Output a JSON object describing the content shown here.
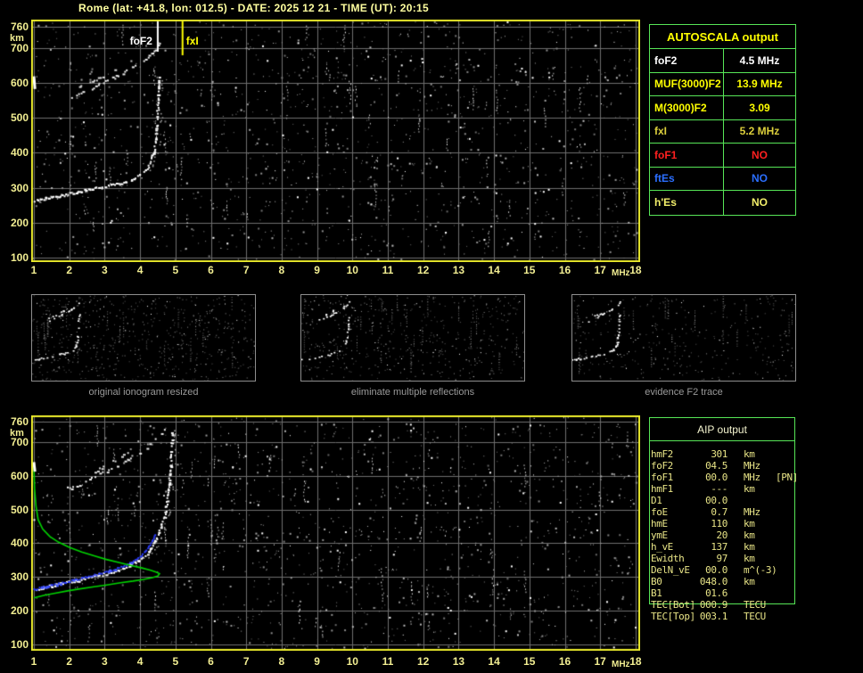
{
  "title": "Rome (lat: +41.8, lon: 012.5) - DATE: 2025 12 21 - TIME (UT): 20:15",
  "colors": {
    "background": "#000000",
    "title_text": "#ffffa0",
    "axis_text": "#f2ee92",
    "plot_border": "#e8e82a",
    "grid": "#6f6f6f",
    "table_border": "#57e657",
    "autoscala_header": "#ffff00",
    "aip_text": "#e9e587",
    "trace_white": "#ffffff",
    "fitted_trace_blue": "#2b3cff",
    "profile_green": "#00d200",
    "panel_caption": "#9a9a9a"
  },
  "chart_data": [
    {
      "type": "scatter",
      "name": "scaled ionogram with AUTOSCALA markers",
      "x_label": "MHz",
      "y_label": "km",
      "xlim": [
        1,
        18
      ],
      "ylim": [
        100,
        760
      ],
      "x_ticks": [
        1,
        2,
        3,
        4,
        5,
        6,
        7,
        8,
        9,
        10,
        11,
        12,
        13,
        14,
        15,
        16,
        17,
        18
      ],
      "y_ticks": [
        760,
        700,
        600,
        500,
        400,
        300,
        200,
        100
      ],
      "grid": true,
      "markers": [
        {
          "label": "foF2",
          "freq_mhz": 4.5,
          "color": "#ffffff",
          "side": "left"
        },
        {
          "label": "fxI",
          "freq_mhz": 5.2,
          "color": "#ffff00",
          "side": "right"
        }
      ],
      "series": [
        {
          "name": "F2 trace (first hop)",
          "color": "#ffffff",
          "style": "speckle",
          "points": [
            [
              1.0,
              262
            ],
            [
              1.3,
              267
            ],
            [
              1.6,
              273
            ],
            [
              1.9,
              279
            ],
            [
              2.2,
              286
            ],
            [
              2.5,
              292
            ],
            [
              2.8,
              298
            ],
            [
              3.1,
              304
            ],
            [
              3.4,
              311
            ],
            [
              3.7,
              320
            ],
            [
              3.95,
              331
            ],
            [
              4.15,
              347
            ],
            [
              4.3,
              370
            ],
            [
              4.4,
              402
            ],
            [
              4.46,
              445
            ],
            [
              4.5,
              505
            ],
            [
              4.53,
              570
            ],
            [
              4.55,
              625
            ]
          ]
        },
        {
          "name": "F2 trace (second hop)",
          "color": "#ededed",
          "style": "speckle-sparse",
          "points": [
            [
              2.1,
              558
            ],
            [
              2.4,
              572
            ],
            [
              2.7,
              585
            ],
            [
              3.0,
              600
            ],
            [
              3.3,
              615
            ],
            [
              3.6,
              631
            ],
            [
              3.9,
              648
            ],
            [
              4.15,
              665
            ],
            [
              4.35,
              682
            ],
            [
              4.5,
              700
            ],
            [
              4.58,
              715
            ]
          ]
        },
        {
          "name": "second hop split echo",
          "color": "#d8d8d8",
          "style": "speckle-sparse",
          "points": [
            [
              2.3,
              585
            ],
            [
              2.6,
              600
            ],
            [
              2.9,
              615
            ],
            [
              3.2,
              630
            ],
            [
              3.5,
              648
            ]
          ]
        },
        {
          "name": "left edge echo",
          "color": "#ffffff",
          "style": "thick",
          "points": [
            [
              1.0,
              618
            ],
            [
              1.03,
              582
            ]
          ]
        }
      ]
    },
    {
      "type": "scatter",
      "name": "ionogram with AIP fitted trace and electron density profile",
      "x_label": "MHz",
      "y_label": "km",
      "xlim": [
        1,
        18
      ],
      "ylim": [
        100,
        760
      ],
      "x_ticks": [
        1,
        2,
        3,
        4,
        5,
        6,
        7,
        8,
        9,
        10,
        11,
        12,
        13,
        14,
        15,
        16,
        17,
        18
      ],
      "y_ticks": [
        760,
        700,
        600,
        500,
        400,
        300,
        200,
        100
      ],
      "grid": true,
      "markers": [],
      "series": [
        {
          "name": "F2 trace (first hop)",
          "color": "#ffffff",
          "style": "speckle",
          "points": [
            [
              1.05,
              263
            ],
            [
              1.35,
              269
            ],
            [
              1.65,
              276
            ],
            [
              1.95,
              283
            ],
            [
              2.25,
              289
            ],
            [
              2.55,
              295
            ],
            [
              2.85,
              303
            ],
            [
              3.15,
              312
            ],
            [
              3.45,
              322
            ],
            [
              3.7,
              333
            ],
            [
              3.95,
              347
            ],
            [
              4.15,
              363
            ],
            [
              4.3,
              382
            ],
            [
              4.45,
              408
            ],
            [
              4.6,
              445
            ],
            [
              4.72,
              490
            ],
            [
              4.8,
              545
            ],
            [
              4.86,
              610
            ],
            [
              4.9,
              675
            ],
            [
              4.92,
              730
            ]
          ]
        },
        {
          "name": "F2 trace (second hop)",
          "color": "#ededed",
          "style": "speckle-sparse",
          "points": [
            [
              2.0,
              560
            ],
            [
              2.3,
              573
            ],
            [
              2.6,
              588
            ],
            [
              2.9,
              604
            ],
            [
              3.2,
              620
            ],
            [
              3.5,
              637
            ],
            [
              3.8,
              655
            ],
            [
              4.1,
              673
            ],
            [
              4.35,
              695
            ],
            [
              4.55,
              718
            ],
            [
              4.7,
              738
            ],
            [
              4.8,
              755
            ]
          ]
        },
        {
          "name": "second hop split echo",
          "color": "#d8d8d8",
          "style": "speckle-sparse",
          "points": [
            [
              2.5,
              600
            ],
            [
              2.8,
              615
            ],
            [
              3.1,
              632
            ],
            [
              3.4,
              650
            ],
            [
              3.7,
              668
            ]
          ]
        },
        {
          "name": "AIP fitted F2 trace",
          "color": "#2b3cff",
          "style": "dots",
          "points": [
            [
              1.0,
              263
            ],
            [
              1.3,
              270
            ],
            [
              1.6,
              277
            ],
            [
              1.9,
              284
            ],
            [
              2.2,
              292
            ],
            [
              2.5,
              300
            ],
            [
              2.8,
              308
            ],
            [
              3.1,
              316
            ],
            [
              3.4,
              326
            ],
            [
              3.65,
              337
            ],
            [
              3.9,
              351
            ],
            [
              4.1,
              368
            ],
            [
              4.25,
              388
            ],
            [
              4.35,
              407
            ],
            [
              4.42,
              420
            ],
            [
              4.45,
              428
            ]
          ]
        },
        {
          "name": "electron density profile N(h)",
          "color": "#00d200",
          "style": "line",
          "points": [
            [
              1.0,
              633
            ],
            [
              1.02,
              560
            ],
            [
              1.06,
              510
            ],
            [
              1.12,
              470
            ],
            [
              1.25,
              442
            ],
            [
              1.45,
              420
            ],
            [
              1.7,
              403
            ],
            [
              2.0,
              388
            ],
            [
              2.35,
              374
            ],
            [
              2.7,
              363
            ],
            [
              3.05,
              352
            ],
            [
              3.4,
              343
            ],
            [
              3.75,
              334
            ],
            [
              4.05,
              327
            ],
            [
              4.3,
              320
            ],
            [
              4.45,
              315
            ],
            [
              4.55,
              310
            ],
            [
              4.5,
              303
            ],
            [
              4.35,
              298
            ],
            [
              4.1,
              293
            ],
            [
              3.8,
              288
            ],
            [
              3.45,
              283
            ],
            [
              3.1,
              277
            ],
            [
              2.7,
              271
            ],
            [
              2.3,
              265
            ],
            [
              1.95,
              259
            ],
            [
              1.6,
              252
            ],
            [
              1.3,
              246
            ],
            [
              1.0,
              238
            ]
          ]
        },
        {
          "name": "left edge echo",
          "color": "#ffffff",
          "style": "thick",
          "points": [
            [
              1.0,
              640
            ],
            [
              1.03,
              612
            ]
          ]
        }
      ]
    }
  ],
  "autoscala_table": {
    "title": "AUTOSCALA output",
    "rows": [
      {
        "param": "foF2",
        "value": "4.5 MHz",
        "color": "#ffffff"
      },
      {
        "param": "MUF(3000)F2",
        "value": "13.9 MHz",
        "color": "#ffff00"
      },
      {
        "param": "M(3000)F2",
        "value": "3.09",
        "color": "#ffff00"
      },
      {
        "param": "fxI",
        "value": "5.2 MHz",
        "color": "#dccf3c"
      },
      {
        "param": "foF1",
        "value": "NO",
        "color": "#ff2020"
      },
      {
        "param": "ftEs",
        "value": "NO",
        "color": "#2b6fff"
      },
      {
        "param": "h'Es",
        "value": "NO",
        "color": "#f2ee6a"
      }
    ]
  },
  "processing_panels": [
    {
      "caption": "original ionogram resized"
    },
    {
      "caption": "eliminate multiple reflections"
    },
    {
      "caption": "evidence F2 trace"
    }
  ],
  "aip_table": {
    "title": "AIP output",
    "rows": [
      {
        "name": "hmF2",
        "value": "301",
        "unit": "km",
        "note": ""
      },
      {
        "name": "foF2",
        "value": "04.5",
        "unit": "MHz",
        "note": ""
      },
      {
        "name": "foF1",
        "value": "00.0",
        "unit": "MHz",
        "note": "[PN]"
      },
      {
        "name": "hmF1",
        "value": "---",
        "unit": "km",
        "note": ""
      },
      {
        "name": "D1",
        "value": "00.0",
        "unit": "",
        "note": ""
      },
      {
        "name": "foE",
        "value": "0.7",
        "unit": "MHz",
        "note": ""
      },
      {
        "name": "hmE",
        "value": "110",
        "unit": "km",
        "note": ""
      },
      {
        "name": "ymE",
        "value": "20",
        "unit": "km",
        "note": ""
      },
      {
        "name": "h_vE",
        "value": "137",
        "unit": "km",
        "note": ""
      },
      {
        "name": "Ewidth",
        "value": "97",
        "unit": "km",
        "note": ""
      },
      {
        "name": "DelN_vE",
        "value": "00.0",
        "unit": "m^(-3)",
        "note": ""
      },
      {
        "name": "B0",
        "value": "048.0",
        "unit": "km",
        "note": ""
      },
      {
        "name": "B1",
        "value": "01.6",
        "unit": "",
        "note": ""
      },
      {
        "name": "TEC[Bot]",
        "value": "000.9",
        "unit": "TECU",
        "note": ""
      },
      {
        "name": "TEC[Top]",
        "value": "003.1",
        "unit": "TECU",
        "note": ""
      }
    ]
  }
}
